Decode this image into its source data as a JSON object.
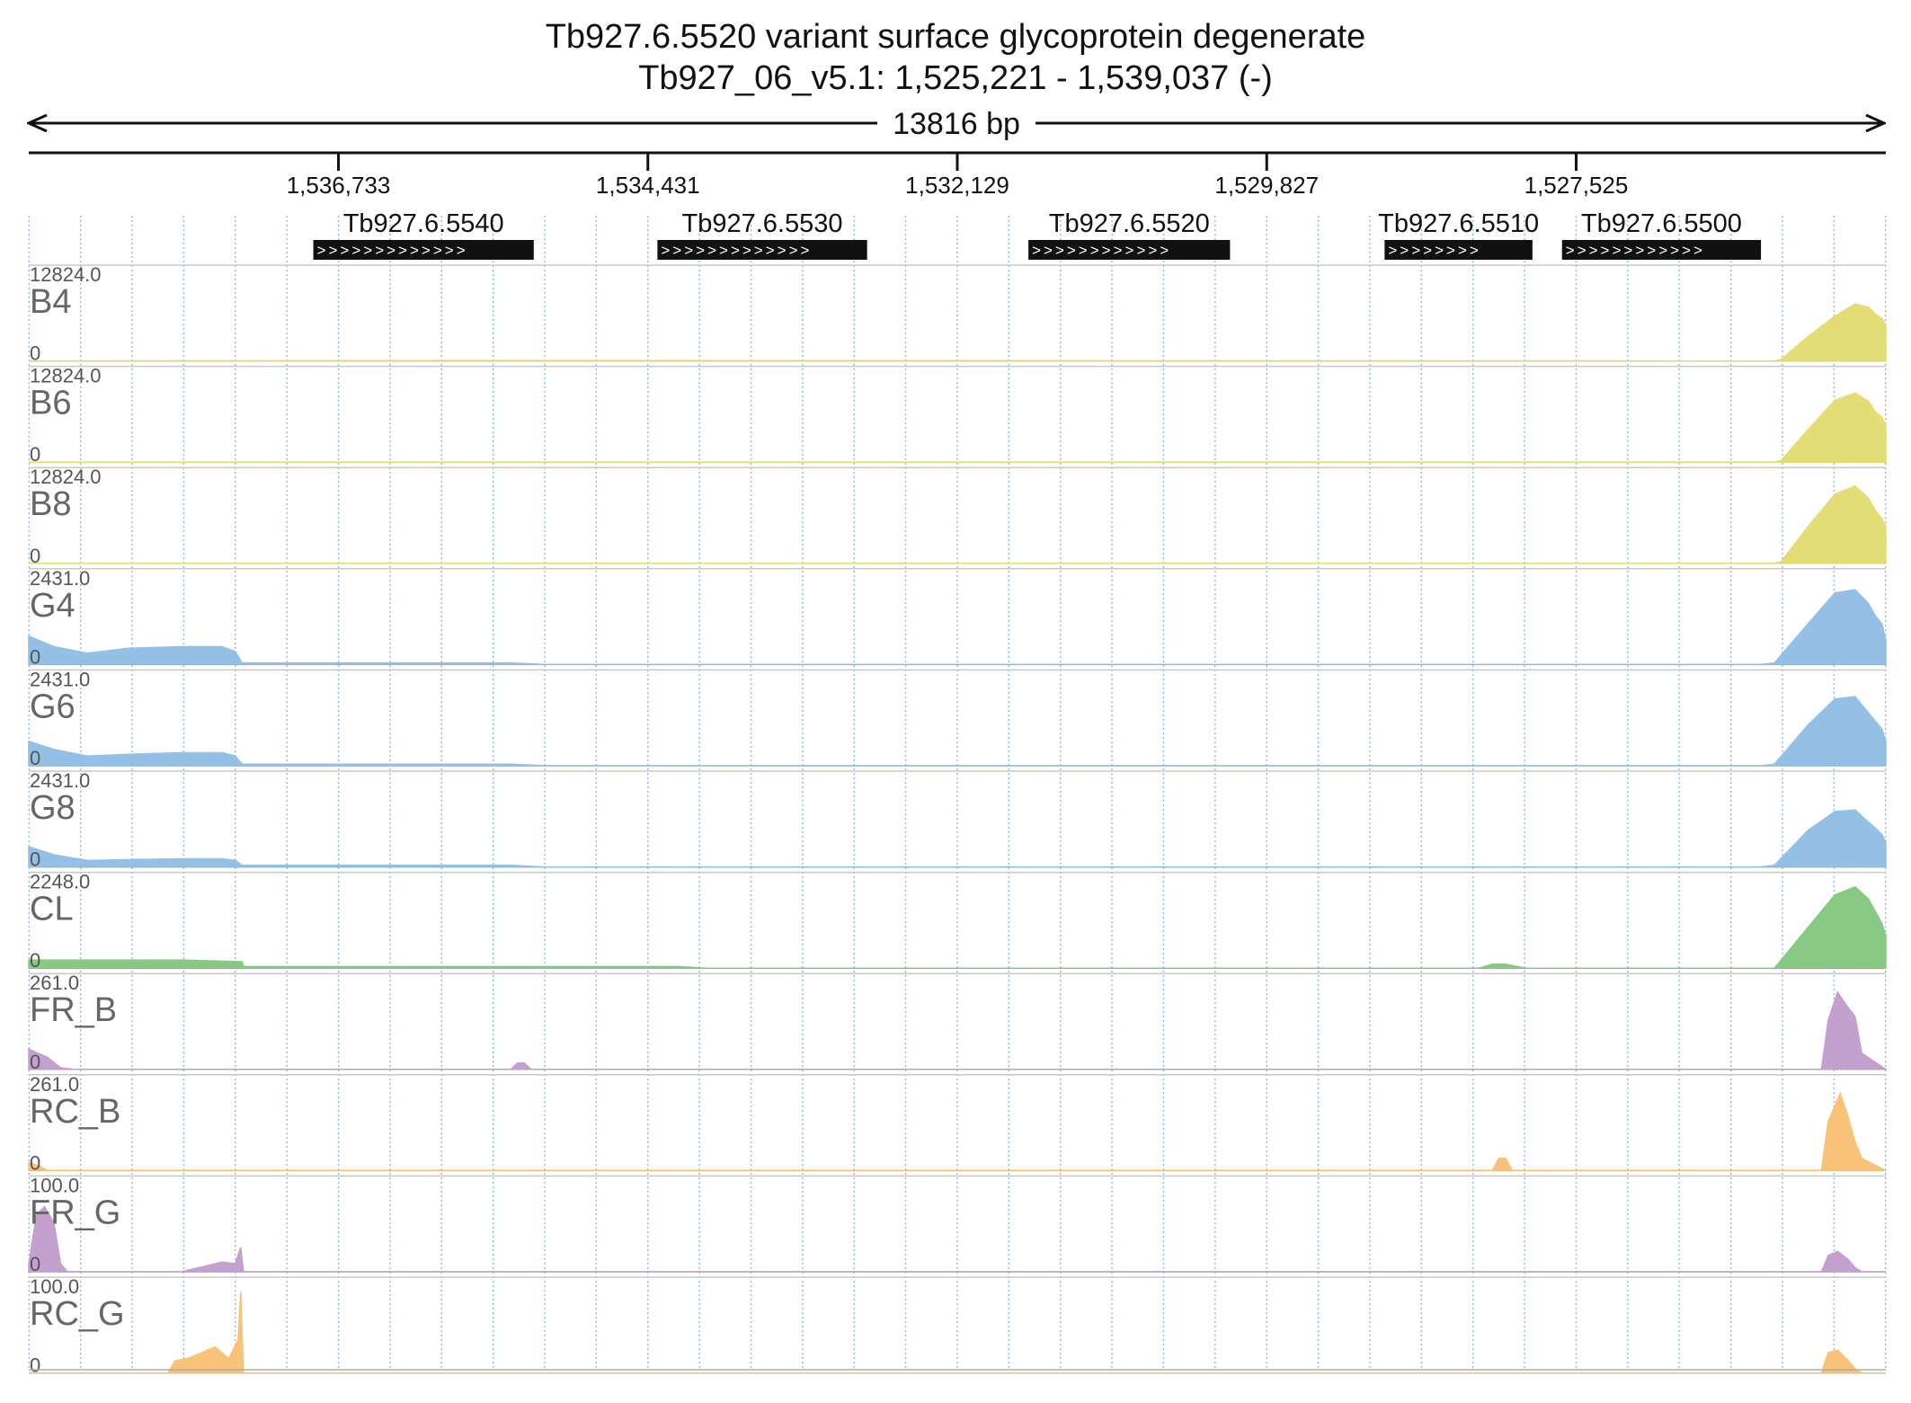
{
  "header": {
    "title": "Tb927.6.5520  variant surface glycoprotein  degenerate",
    "locus": "Tb927_06_v5.1: 1,525,221 - 1,539,037 (-)",
    "span_label": "13816 bp"
  },
  "chart_data": {
    "type": "area",
    "title": "Tb927.6.5520  variant surface glycoprotein  degenerate",
    "subtitle": "Tb927_06_v5.1: 1,525,221 - 1,539,037 (-)",
    "xlim": [
      1539037,
      1525221
    ],
    "x_reversed": true,
    "ticks": [
      {
        "pos": 1536733,
        "label": "1,536,733"
      },
      {
        "pos": 1534431,
        "label": "1,534,431"
      },
      {
        "pos": 1532129,
        "label": "1,532,129"
      },
      {
        "pos": 1529827,
        "label": "1,529,827"
      },
      {
        "pos": 1527525,
        "label": "1,527,525"
      }
    ],
    "genes": [
      {
        "name": "Tb927.6.5540",
        "start": 1536920,
        "end": 1535280
      },
      {
        "name": "Tb927.6.5530",
        "start": 1534360,
        "end": 1532800
      },
      {
        "name": "Tb927.6.5520",
        "start": 1531600,
        "end": 1530100
      },
      {
        "name": "Tb927.6.5510",
        "start": 1528950,
        "end": 1527850
      },
      {
        "name": "Tb927.6.5500",
        "start": 1527630,
        "end": 1526150
      }
    ],
    "tracks": [
      {
        "name": "B4",
        "max": "12824.0",
        "min": "0",
        "color": "#e3dc6e",
        "points": [
          [
            1539037,
            0
          ],
          [
            1535500,
            0.005
          ],
          [
            1535300,
            0.005
          ],
          [
            1526050,
            0
          ],
          [
            1526000,
            0.02
          ],
          [
            1525800,
            0.3
          ],
          [
            1525600,
            0.55
          ],
          [
            1525450,
            0.7
          ],
          [
            1525350,
            0.66
          ],
          [
            1525300,
            0.58
          ],
          [
            1525250,
            0.52
          ],
          [
            1525221,
            0.45
          ]
        ]
      },
      {
        "name": "B6",
        "max": "12824.0",
        "min": "0",
        "color": "#e3dc6e",
        "points": [
          [
            1539037,
            0
          ],
          [
            1526050,
            0
          ],
          [
            1526000,
            0.02
          ],
          [
            1525800,
            0.4
          ],
          [
            1525600,
            0.76
          ],
          [
            1525450,
            0.85
          ],
          [
            1525350,
            0.75
          ],
          [
            1525300,
            0.62
          ],
          [
            1525250,
            0.55
          ],
          [
            1525221,
            0.45
          ]
        ]
      },
      {
        "name": "B8",
        "max": "12824.0",
        "min": "0",
        "color": "#e3dc6e",
        "points": [
          [
            1539037,
            0
          ],
          [
            1526050,
            0
          ],
          [
            1526000,
            0.02
          ],
          [
            1525800,
            0.45
          ],
          [
            1525600,
            0.85
          ],
          [
            1525450,
            0.95
          ],
          [
            1525350,
            0.8
          ],
          [
            1525300,
            0.65
          ],
          [
            1525250,
            0.55
          ],
          [
            1525221,
            0.45
          ]
        ]
      },
      {
        "name": "G4",
        "max": "2431.0",
        "min": "0",
        "color": "#8fbde4",
        "points": [
          [
            1539037,
            0.35
          ],
          [
            1538850,
            0.22
          ],
          [
            1538600,
            0.14
          ],
          [
            1538300,
            0.2
          ],
          [
            1537900,
            0.22
          ],
          [
            1537600,
            0.22
          ],
          [
            1537500,
            0.16
          ],
          [
            1537450,
            0.02
          ],
          [
            1535450,
            0.02
          ],
          [
            1535200,
            0
          ],
          [
            1526150,
            0
          ],
          [
            1526050,
            0.02
          ],
          [
            1525800,
            0.5
          ],
          [
            1525600,
            0.88
          ],
          [
            1525450,
            0.92
          ],
          [
            1525350,
            0.75
          ],
          [
            1525300,
            0.6
          ],
          [
            1525250,
            0.5
          ],
          [
            1525221,
            0.3
          ]
        ]
      },
      {
        "name": "G6",
        "max": "2431.0",
        "min": "0",
        "color": "#8fbde4",
        "points": [
          [
            1539037,
            0.3
          ],
          [
            1538850,
            0.2
          ],
          [
            1538600,
            0.12
          ],
          [
            1538300,
            0.14
          ],
          [
            1537900,
            0.16
          ],
          [
            1537600,
            0.16
          ],
          [
            1537500,
            0.12
          ],
          [
            1537450,
            0.02
          ],
          [
            1535450,
            0.02
          ],
          [
            1535200,
            0
          ],
          [
            1526150,
            0
          ],
          [
            1526050,
            0.02
          ],
          [
            1525800,
            0.5
          ],
          [
            1525600,
            0.82
          ],
          [
            1525450,
            0.85
          ],
          [
            1525350,
            0.65
          ],
          [
            1525300,
            0.55
          ],
          [
            1525250,
            0.45
          ],
          [
            1525221,
            0.3
          ]
        ]
      },
      {
        "name": "G8",
        "max": "2431.0",
        "min": "0",
        "color": "#8fbde4",
        "points": [
          [
            1539037,
            0.25
          ],
          [
            1538850,
            0.15
          ],
          [
            1538600,
            0.08
          ],
          [
            1538300,
            0.09
          ],
          [
            1537900,
            0.1
          ],
          [
            1537600,
            0.1
          ],
          [
            1537500,
            0.08
          ],
          [
            1537450,
            0.02
          ],
          [
            1535450,
            0.02
          ],
          [
            1535200,
            0
          ],
          [
            1526150,
            0
          ],
          [
            1526050,
            0.02
          ],
          [
            1525800,
            0.45
          ],
          [
            1525600,
            0.68
          ],
          [
            1525450,
            0.7
          ],
          [
            1525350,
            0.55
          ],
          [
            1525300,
            0.48
          ],
          [
            1525250,
            0.4
          ],
          [
            1525221,
            0.3
          ]
        ]
      },
      {
        "name": "CL",
        "max": "2248.0",
        "min": "0",
        "color": "#82c87e",
        "points": [
          [
            1539037,
            0.1
          ],
          [
            1538300,
            0.1
          ],
          [
            1537900,
            0.1
          ],
          [
            1537450,
            0.08
          ],
          [
            1537440,
            0.02
          ],
          [
            1534200,
            0.02
          ],
          [
            1534000,
            0
          ],
          [
            1528250,
            0
          ],
          [
            1528150,
            0.05
          ],
          [
            1528050,
            0.05
          ],
          [
            1527900,
            0
          ],
          [
            1526050,
            0
          ],
          [
            1525800,
            0.5
          ],
          [
            1525600,
            0.9
          ],
          [
            1525450,
            1.0
          ],
          [
            1525350,
            0.85
          ],
          [
            1525300,
            0.7
          ],
          [
            1525250,
            0.55
          ],
          [
            1525221,
            0.4
          ]
        ]
      },
      {
        "name": "FR_B",
        "max": "261.0",
        "min": "0",
        "color": "#c19bcd",
        "points": [
          [
            1539037,
            0.25
          ],
          [
            1538900,
            0.15
          ],
          [
            1538800,
            0.02
          ],
          [
            1538700,
            0
          ],
          [
            1535450,
            0
          ],
          [
            1535400,
            0.08
          ],
          [
            1535350,
            0.08
          ],
          [
            1535300,
            0
          ],
          [
            1525700,
            0
          ],
          [
            1525650,
            0.6
          ],
          [
            1525580,
            0.95
          ],
          [
            1525520,
            0.8
          ],
          [
            1525450,
            0.65
          ],
          [
            1525400,
            0.2
          ],
          [
            1525221,
            0
          ]
        ]
      },
      {
        "name": "RC_B",
        "max": "261.0",
        "min": "0",
        "color": "#f9bf72",
        "points": [
          [
            1539037,
            0.1
          ],
          [
            1538950,
            0.05
          ],
          [
            1538900,
            0
          ],
          [
            1528150,
            0
          ],
          [
            1528100,
            0.15
          ],
          [
            1528050,
            0.15
          ],
          [
            1528000,
            0
          ],
          [
            1525700,
            0
          ],
          [
            1525650,
            0.6
          ],
          [
            1525560,
            0.95
          ],
          [
            1525500,
            0.65
          ],
          [
            1525450,
            0.35
          ],
          [
            1525400,
            0.15
          ],
          [
            1525221,
            0
          ]
        ]
      },
      {
        "name": "FR_G",
        "max": "100.0",
        "min": "0",
        "color": "#c19bcd",
        "points": [
          [
            1539037,
            0.1
          ],
          [
            1538980,
            0.7
          ],
          [
            1538920,
            0.8
          ],
          [
            1538850,
            0.6
          ],
          [
            1538800,
            0.1
          ],
          [
            1538750,
            0
          ],
          [
            1537900,
            0
          ],
          [
            1537800,
            0.04
          ],
          [
            1537700,
            0.08
          ],
          [
            1537600,
            0.12
          ],
          [
            1537500,
            0.1
          ],
          [
            1537460,
            0.3
          ],
          [
            1537440,
            0
          ],
          [
            1525700,
            0
          ],
          [
            1525650,
            0.2
          ],
          [
            1525580,
            0.25
          ],
          [
            1525500,
            0.15
          ],
          [
            1525450,
            0.05
          ],
          [
            1525400,
            0
          ],
          [
            1525221,
            0
          ]
        ]
      },
      {
        "name": "RC_G",
        "max": "100.0",
        "min": "0",
        "color": "#f9bf72",
        "points": [
          [
            1539037,
            0
          ],
          [
            1538000,
            0
          ],
          [
            1537950,
            0.15
          ],
          [
            1537850,
            0.18
          ],
          [
            1537750,
            0.25
          ],
          [
            1537650,
            0.32
          ],
          [
            1537550,
            0.18
          ],
          [
            1537480,
            0.4
          ],
          [
            1537460,
            1.0
          ],
          [
            1537440,
            0
          ],
          [
            1525700,
            0
          ],
          [
            1525650,
            0.25
          ],
          [
            1525580,
            0.28
          ],
          [
            1525500,
            0.15
          ],
          [
            1525450,
            0.05
          ],
          [
            1525400,
            0
          ],
          [
            1525221,
            0
          ]
        ]
      }
    ]
  }
}
